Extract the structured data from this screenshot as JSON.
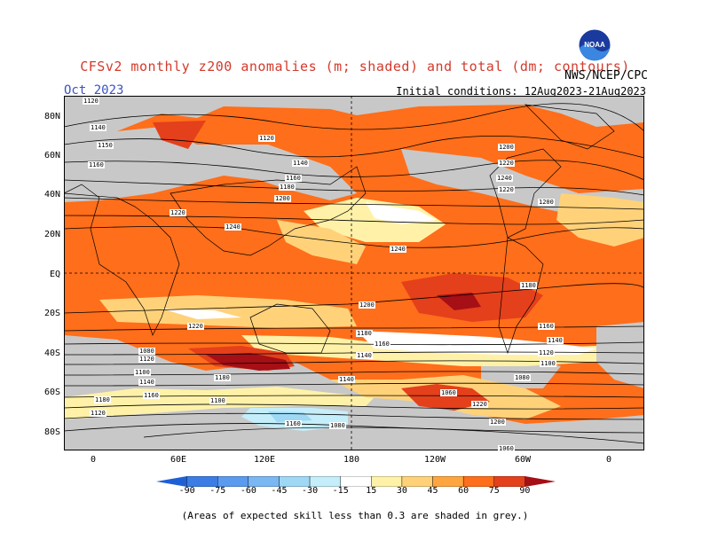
{
  "header": {
    "title": "CFSv2 monthly z200 anomalies (m; shaded) and total (dm; contours)",
    "month": "Oct 2023",
    "agency": "NWS/NCEP/CPC",
    "initial_conditions": "Initial conditions: 12Aug2023-21Aug2023",
    "logo_text": "NOAA"
  },
  "map": {
    "lat_labels": [
      "80N",
      "60N",
      "40N",
      "20N",
      "EQ",
      "20S",
      "40S",
      "60S",
      "80S"
    ],
    "lon_labels": [
      "0",
      "60E",
      "120E",
      "180",
      "120W",
      "60W",
      "0"
    ],
    "contour_labels": [
      "1120",
      "1140",
      "1150",
      "1160",
      "1120",
      "1140",
      "1160",
      "1180",
      "1200",
      "1220",
      "1240",
      "1240",
      "1220",
      "1200",
      "1180",
      "1160",
      "1140",
      "1120",
      "1100",
      "1080",
      "1140",
      "1160",
      "1180",
      "1200",
      "1220",
      "1240",
      "1220",
      "1200",
      "1180",
      "1160",
      "1140",
      "1120",
      "1100",
      "1080",
      "1060",
      "1220",
      "1200",
      "1180",
      "1160",
      "1140",
      "1120",
      "1100",
      "1080",
      "1060",
      "1240",
      "1200",
      "1220",
      "1180",
      "1160",
      "1140"
    ],
    "colors": {
      "grey": "#c8c8c8",
      "pos15": "#fff2a8",
      "pos30": "#ffd27a",
      "pos45": "#ffa540",
      "pos60": "#ff6e1a",
      "pos75": "#e4401b",
      "pos90": "#a50f15",
      "neg15": "#c4eefa",
      "neg30": "#9ed8f5"
    }
  },
  "colorbar": {
    "labels": [
      "-90",
      "-75",
      "-60",
      "-45",
      "-30",
      "-15",
      "15",
      "30",
      "45",
      "60",
      "75",
      "90"
    ],
    "colors": [
      "#1f5fd6",
      "#3b7de4",
      "#5a9bf0",
      "#7ab7f3",
      "#9ed8f5",
      "#c4eefa",
      "#ffffff",
      "#fff2a8",
      "#ffd27a",
      "#ffa540",
      "#ff6e1a",
      "#e4401b",
      "#a50f15"
    ]
  },
  "footer": {
    "note": "(Areas of expected skill less than 0.3 are shaded in grey.)"
  }
}
